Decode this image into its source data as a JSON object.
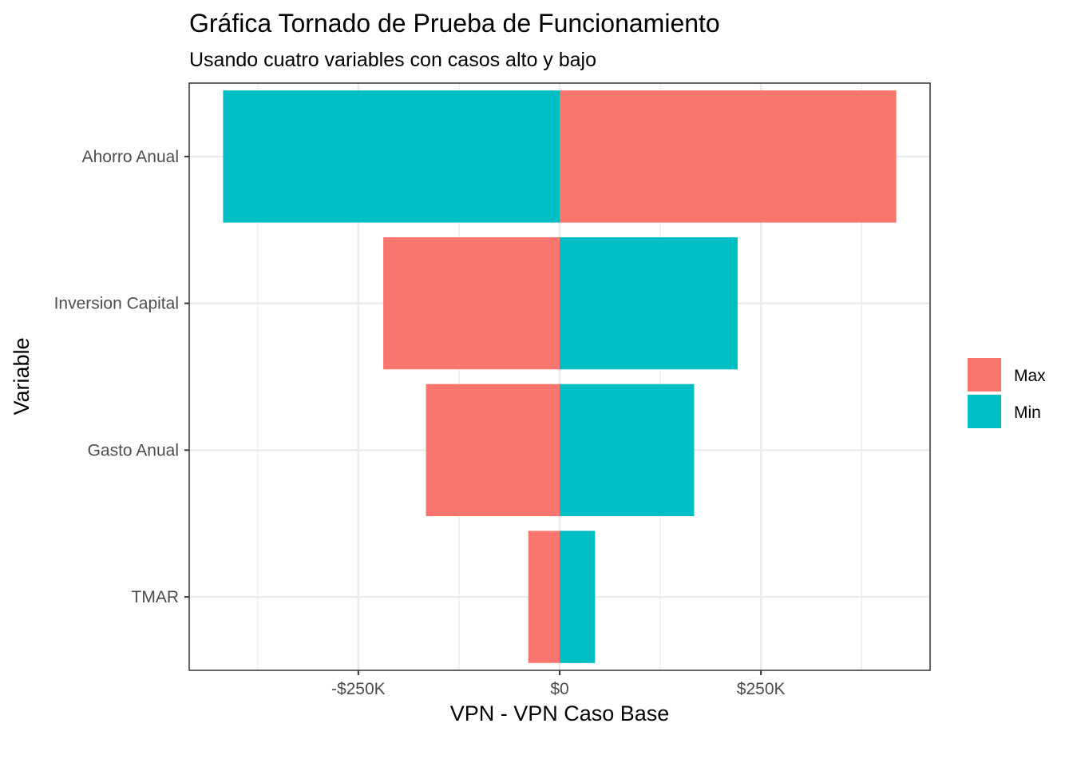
{
  "chart_data": {
    "type": "bar",
    "orientation": "horizontal",
    "title": "Gráfica Tornado de Prueba de Funcionamiento",
    "subtitle": "Usando cuatro variables con casos alto y bajo",
    "xlabel": "VPN - VPN Caso Base",
    "ylabel": "Variable",
    "categories": [
      "Ahorro Anual",
      "Inversion Capital",
      "Gasto Anual",
      "TMAR"
    ],
    "series": [
      {
        "name": "Max",
        "color": "#F8766D",
        "values": [
          418000,
          -219000,
          -166000,
          -39000
        ]
      },
      {
        "name": "Min",
        "color": "#00BFC4",
        "values": [
          -418000,
          221000,
          167000,
          44000
        ]
      }
    ],
    "xlim": [
      -460000,
      460000
    ],
    "xticks": [
      {
        "value": -250000,
        "label": "-$250K"
      },
      {
        "value": 0,
        "label": "$0"
      },
      {
        "value": 250000,
        "label": "$250K"
      }
    ],
    "x_minor_gridlines": [
      -375000,
      -125000,
      125000,
      375000
    ],
    "grid": true,
    "legend_position": "right"
  }
}
